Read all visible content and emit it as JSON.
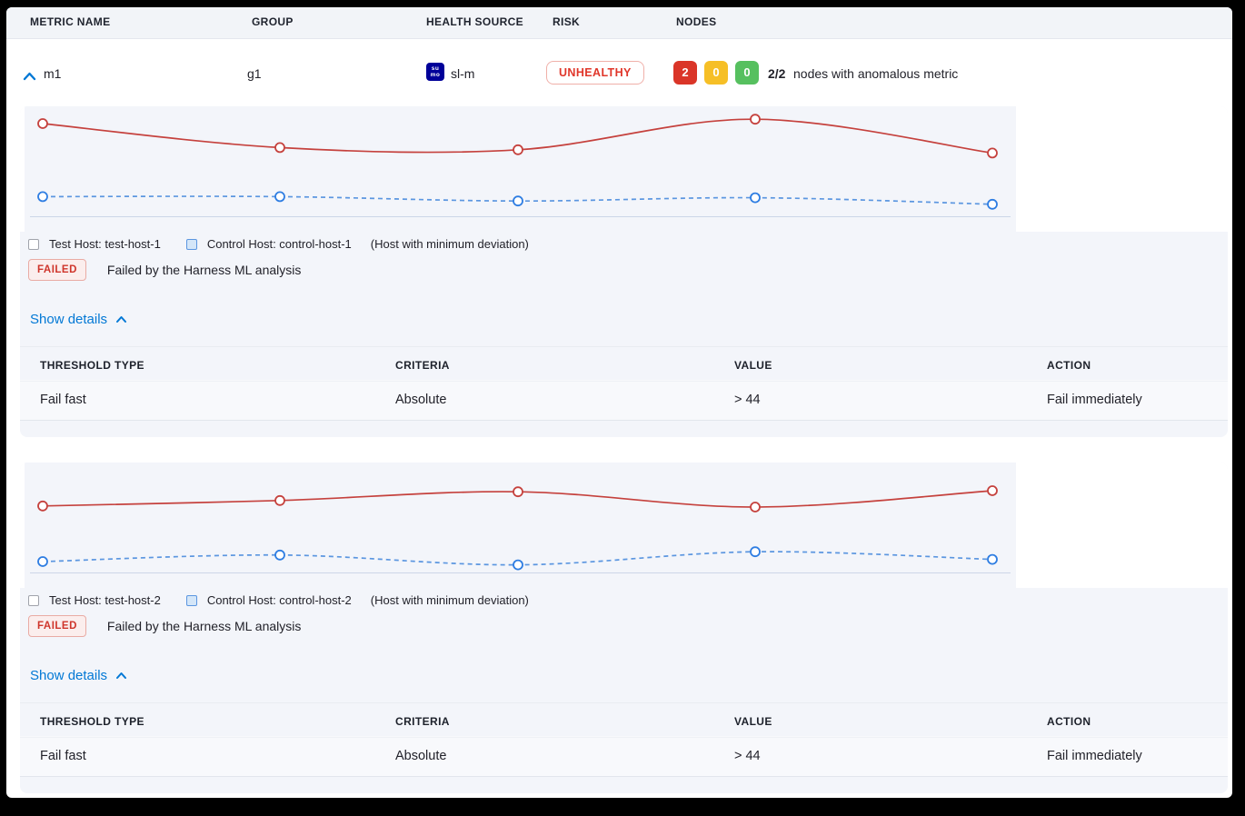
{
  "columns": {
    "metric_name": "METRIC NAME",
    "group": "GROUP",
    "health_source": "HEALTH SOURCE",
    "risk": "RISK",
    "nodes": "NODES"
  },
  "row": {
    "metric_name": "m1",
    "group": "g1",
    "health_source_label": "sl-m",
    "health_source_icon_lines": [
      "su",
      "mo"
    ],
    "risk_badge": "UNHEALTHY",
    "nodes": {
      "anomalous_count": "2",
      "warning_count": "0",
      "healthy_count": "0",
      "ratio": "2/2",
      "description": "nodes with anomalous metric"
    }
  },
  "sections": [
    {
      "legend": {
        "test_host": "Test Host: test-host-1",
        "control_host": "Control Host: control-host-1",
        "note": "(Host with minimum deviation)"
      },
      "status": {
        "badge": "FAILED",
        "message": "Failed by the Harness ML analysis"
      },
      "details_link": "Show details",
      "threshold_table": {
        "headers": [
          "THRESHOLD TYPE",
          "CRITERIA",
          "VALUE",
          "ACTION"
        ],
        "rows": [
          [
            "Fail fast",
            "Absolute",
            "> 44",
            "Fail immediately"
          ]
        ]
      }
    },
    {
      "legend": {
        "test_host": "Test Host: test-host-2",
        "control_host": "Control Host: control-host-2",
        "note": "(Host with minimum deviation)"
      },
      "status": {
        "badge": "FAILED",
        "message": "Failed by the Harness ML analysis"
      },
      "details_link": "Show details",
      "threshold_table": {
        "headers": [
          "THRESHOLD TYPE",
          "CRITERIA",
          "VALUE",
          "ACTION"
        ],
        "rows": [
          [
            "Fail fast",
            "Absolute",
            "> 44",
            "Fail immediately"
          ]
        ]
      }
    }
  ],
  "chart_data": [
    {
      "type": "line",
      "x": [
        1,
        2,
        3,
        4,
        5
      ],
      "x_labels_visible": false,
      "y_axis_visible": false,
      "grid": false,
      "ylim": [
        0,
        100
      ],
      "value_scale": "relative 0-100 (estimated; chart axes are unlabeled in the UI)",
      "series": [
        {
          "name": "Test Host: test-host-1",
          "color": "#c5413d",
          "line_style": "solid",
          "marker": "open-circle",
          "values": [
            85,
            63,
            61,
            89,
            58
          ]
        },
        {
          "name": "Control Host: control-host-1",
          "color": "#5b96e0",
          "marker_color": "#2e7de2",
          "line_style": "dashed",
          "marker": "open-circle",
          "values": [
            18,
            18,
            14,
            17,
            11
          ]
        }
      ]
    },
    {
      "type": "line",
      "x": [
        1,
        2,
        3,
        4,
        5
      ],
      "x_labels_visible": false,
      "y_axis_visible": false,
      "grid": false,
      "ylim": [
        0,
        100
      ],
      "value_scale": "relative 0-100 (estimated; chart axes are unlabeled in the UI)",
      "series": [
        {
          "name": "Test Host: test-host-2",
          "color": "#c5413d",
          "line_style": "solid",
          "marker": "open-circle",
          "values": [
            61,
            66,
            74,
            60,
            75
          ]
        },
        {
          "name": "Control Host: control-host-2",
          "color": "#5b96e0",
          "marker_color": "#2e7de2",
          "line_style": "dashed",
          "marker": "open-circle",
          "values": [
            10,
            16,
            7,
            19,
            12
          ]
        }
      ]
    }
  ],
  "colors": {
    "accent_blue": "#0278d5",
    "risk_red": "#e0362a",
    "node_red": "#da3528",
    "node_yellow": "#f6bf26",
    "node_green": "#56c05f",
    "test_line": "#c5413d",
    "control_line": "#5b96e0",
    "panel_bg": "#f3f5fa",
    "header_bg": "#f2f4f8",
    "health_source_icon_bg": "#000099"
  }
}
